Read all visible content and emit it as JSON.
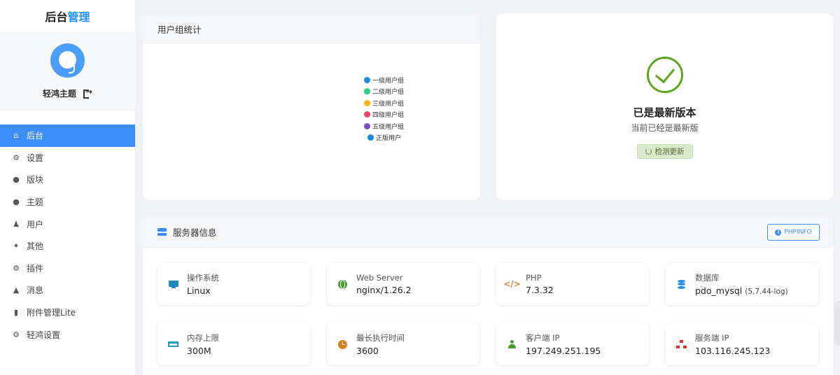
{
  "brand": {
    "part1": "后台",
    "part2": "管理"
  },
  "profile": {
    "name": "轻鸿主题"
  },
  "sidebar": {
    "items": [
      {
        "label": "后台",
        "icon": "home-icon"
      },
      {
        "label": "设置",
        "icon": "gear-icon"
      },
      {
        "label": "版块",
        "icon": "comment-icon"
      },
      {
        "label": "主题",
        "icon": "comment-icon"
      },
      {
        "label": "用户",
        "icon": "user-icon"
      },
      {
        "label": "其他",
        "icon": "wrench-icon"
      },
      {
        "label": "插件",
        "icon": "cogs-icon"
      },
      {
        "label": "消息",
        "icon": "bell-icon"
      },
      {
        "label": "附件管理Lite",
        "icon": "file-icon"
      },
      {
        "label": "轻鸿设置",
        "icon": "gear-icon"
      }
    ],
    "active_index": 0
  },
  "usergroup": {
    "title": "用户组统计",
    "legend": [
      {
        "label": "一级用户组",
        "color": "#1e88e5"
      },
      {
        "label": "二级用户组",
        "color": "#26d07c"
      },
      {
        "label": "三级用户组",
        "color": "#fbb614"
      },
      {
        "label": "四级用户组",
        "color": "#ef4565"
      },
      {
        "label": "五级用户组",
        "color": "#7a4fc8"
      },
      {
        "label": "正版用户",
        "color": "#1e88e5"
      }
    ]
  },
  "version": {
    "title": "已是最新版本",
    "subtitle": "当前已经是最新版",
    "check_label": "检测更新"
  },
  "server": {
    "title": "服务器信息",
    "phpinfo_label": "PHPINFO",
    "stats": [
      {
        "label": "操作系统",
        "value": "Linux",
        "extra": "",
        "icon": "monitor-icon"
      },
      {
        "label": "Web Server",
        "value": "nginx/1.26.2",
        "extra": "",
        "icon": "globe-icon"
      },
      {
        "label": "PHP",
        "value": "7.3.32",
        "extra": "",
        "icon": "code-icon"
      },
      {
        "label": "数据库",
        "value": "pdo_mysql",
        "extra": "(5.7.44-log)",
        "icon": "database-icon"
      },
      {
        "label": "内存上限",
        "value": "300M",
        "extra": "",
        "icon": "memory-icon"
      },
      {
        "label": "最长执行时间",
        "value": "3600",
        "extra": "",
        "icon": "clock-icon"
      },
      {
        "label": "客户端 IP",
        "value": "197.249.251.195",
        "extra": "",
        "icon": "user-icon"
      },
      {
        "label": "服务端 IP",
        "value": "103.116.245.123",
        "extra": "",
        "icon": "network-icon"
      }
    ]
  }
}
